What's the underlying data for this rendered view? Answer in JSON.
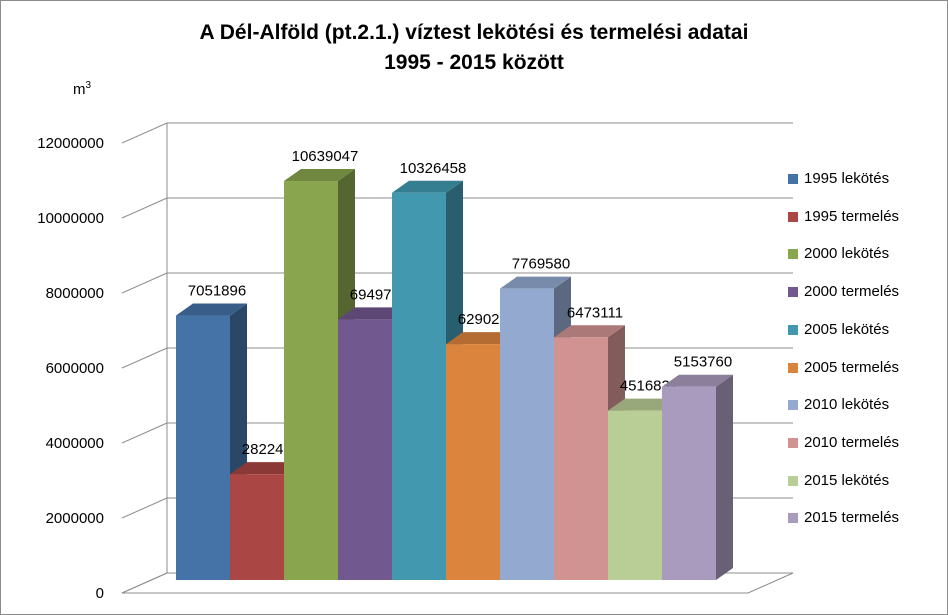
{
  "chart_data": {
    "type": "bar",
    "title_line1": "A Dél-Alföld (pt.2.1.) víztest lekötési és termelési adatai",
    "title_line2": "1995 - 2015 között",
    "ylabel": "m",
    "ylabel_sup": "3",
    "ylim": [
      0,
      12000000
    ],
    "yticks": [
      "0",
      "2000000",
      "4000000",
      "6000000",
      "8000000",
      "10000000",
      "12000000"
    ],
    "grid": true,
    "legend_position": "right",
    "series": [
      {
        "name": "1995 lekötés",
        "value": 7051896,
        "label": "7051896",
        "color": "#4572a7"
      },
      {
        "name": "1995 termelés",
        "value": 2822469,
        "label": "2822469",
        "color": "#aa4643"
      },
      {
        "name": "2000 lekötés",
        "value": 10639047,
        "label": "10639047",
        "color": "#89a54e"
      },
      {
        "name": "2000 termelés",
        "value": 6949788,
        "label": "6949788",
        "color": "#71588f"
      },
      {
        "name": "2005 lekötés",
        "value": 10326458,
        "label": "10326458",
        "color": "#4198af"
      },
      {
        "name": "2005 termelés",
        "value": 6290212,
        "label": "6290212",
        "color": "#db843d"
      },
      {
        "name": "2010 lekötés",
        "value": 7769580,
        "label": "7769580",
        "color": "#93a9cf"
      },
      {
        "name": "2010 termelés",
        "value": 6473111,
        "label": "6473111",
        "color": "#d19392"
      },
      {
        "name": "2015 lekötés",
        "value": 4516832,
        "label": "4516832",
        "color": "#b9cd96"
      },
      {
        "name": "2015 termelés",
        "value": 5153760,
        "label": "5153760",
        "color": "#a99bbd"
      }
    ]
  }
}
